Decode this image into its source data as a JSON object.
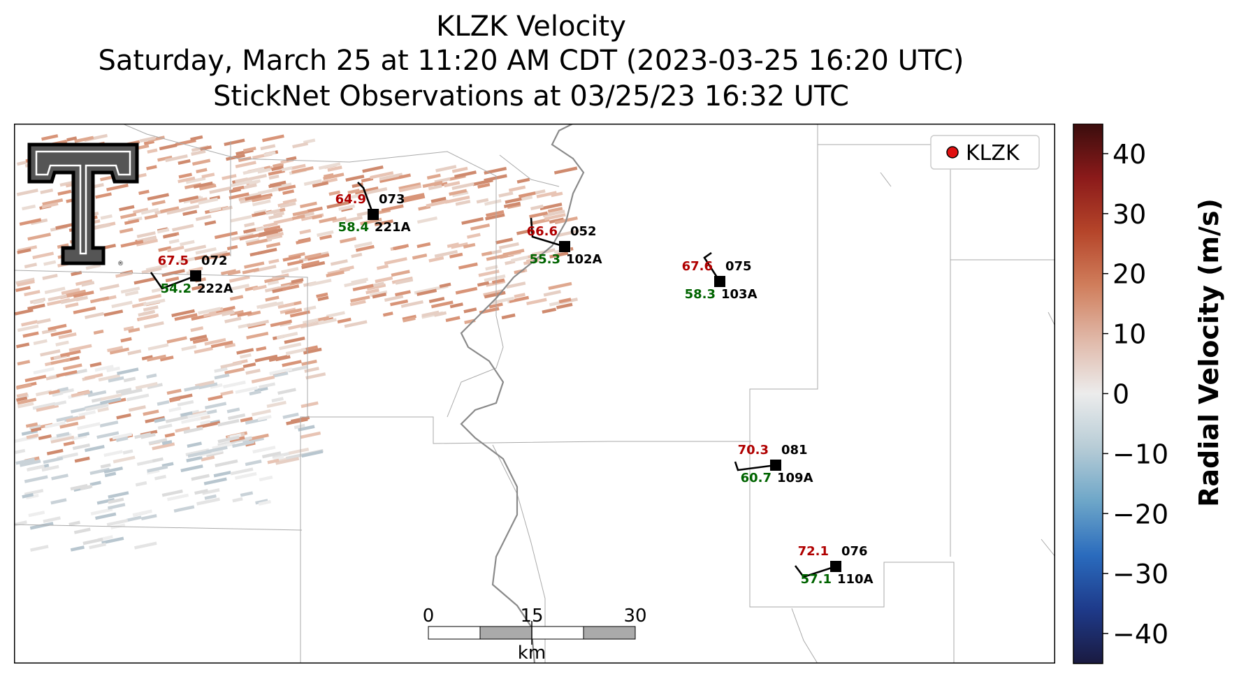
{
  "title": {
    "line1": "KLZK Velocity",
    "line2": "Saturday, March 25 at 11:20 AM CDT (2023-03-25 16:20 UTC)",
    "line3": "StickNet Observations at 03/25/23 16:32 UTC"
  },
  "legend": {
    "label": "KLZK",
    "marker_color": "#e01010"
  },
  "colorbar": {
    "label": "Radial Velocity (m/s)",
    "ticks": [
      "40",
      "30",
      "20",
      "10",
      "0",
      "−10",
      "−20",
      "−30",
      "−40"
    ],
    "range": [
      -45,
      45
    ],
    "colors": [
      "#1a1a40",
      "#1e3a8a",
      "#2a6bbd",
      "#6da6c8",
      "#b7ccd6",
      "#ececec",
      "#e0b8a8",
      "#d07e5c",
      "#b5452a",
      "#8b1a1a",
      "#3a0d0d"
    ]
  },
  "scalebar": {
    "labels": [
      "0",
      "15",
      "30"
    ],
    "unit": "km"
  },
  "logo": {
    "name": "texas-tech-double-t-logo",
    "text": "T",
    "registered_mark": "®"
  },
  "stations": [
    {
      "id": "222A",
      "gust": "67.5",
      "mean": "54.2",
      "dir": "072"
    },
    {
      "id": "221A",
      "gust": "64.9",
      "mean": "58.4",
      "dir": "073"
    },
    {
      "id": "102A",
      "gust": "66.6",
      "mean": "55.3",
      "dir": "052"
    },
    {
      "id": "103A",
      "gust": "67.6",
      "mean": "58.3",
      "dir": "075"
    },
    {
      "id": "109A",
      "gust": "70.3",
      "mean": "60.7",
      "dir": "081"
    },
    {
      "id": "110A",
      "gust": "72.1",
      "mean": "57.1",
      "dir": "076"
    }
  ],
  "colors": {
    "gust": "#b00000",
    "mean": "#006400",
    "river": "#8a8a8a",
    "county": "#a9a9a9"
  }
}
